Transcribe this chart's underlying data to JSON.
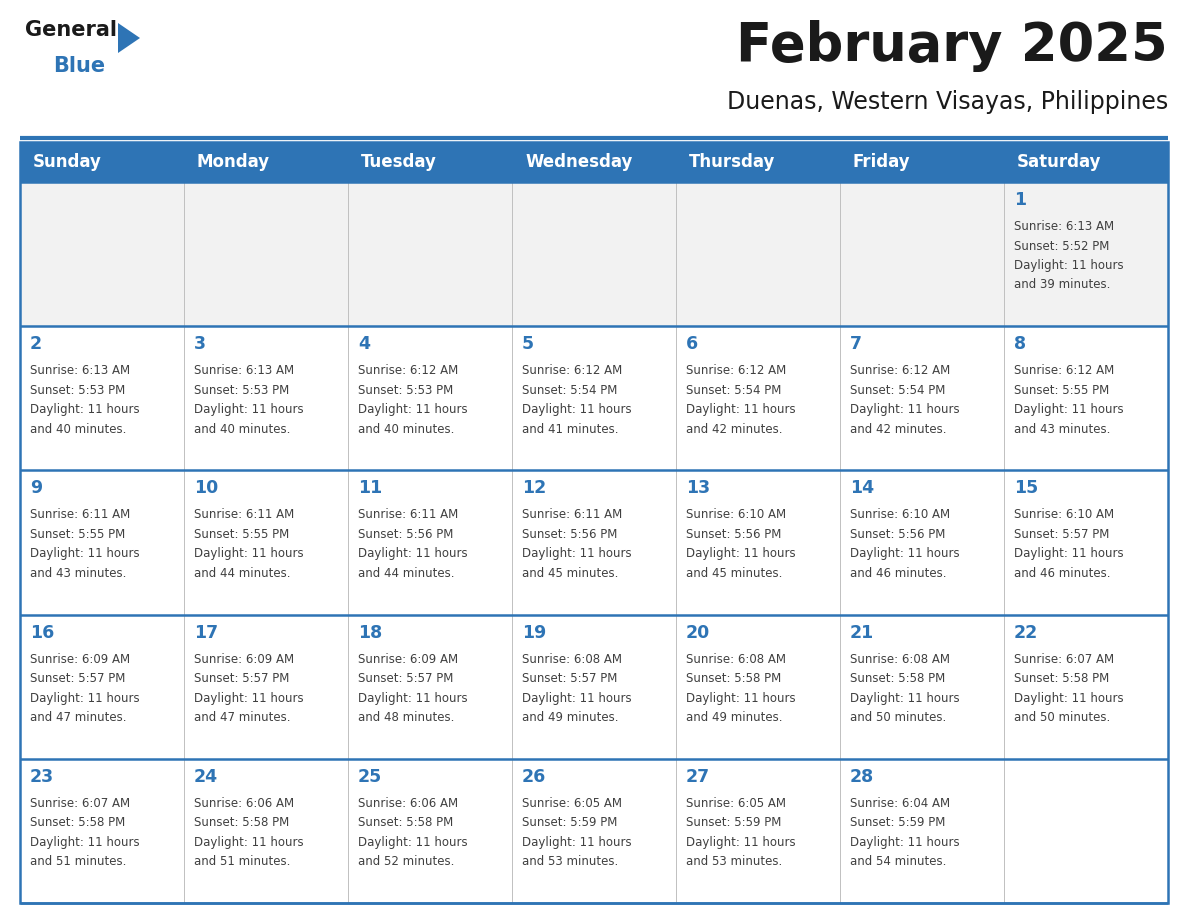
{
  "title": "February 2025",
  "subtitle": "Duenas, Western Visayas, Philippines",
  "days_of_week": [
    "Sunday",
    "Monday",
    "Tuesday",
    "Wednesday",
    "Thursday",
    "Friday",
    "Saturday"
  ],
  "header_bg": "#2E74B5",
  "header_text_color": "#FFFFFF",
  "cell_bg_white": "#FFFFFF",
  "cell_bg_gray": "#F2F2F2",
  "row_divider_color": "#2E74B5",
  "date_color": "#2E74B5",
  "info_color": "#404040",
  "title_color": "#1A1A1A",
  "subtitle_color": "#1A1A1A",
  "logo_general_color": "#1A1A1A",
  "logo_blue_color": "#2E74B5",
  "logo_triangle_color": "#2E74B5",
  "calendar_data": {
    "1": {
      "sunrise": "6:13 AM",
      "sunset": "5:52 PM",
      "daylight": "11 hours and 39 minutes."
    },
    "2": {
      "sunrise": "6:13 AM",
      "sunset": "5:53 PM",
      "daylight": "11 hours and 40 minutes."
    },
    "3": {
      "sunrise": "6:13 AM",
      "sunset": "5:53 PM",
      "daylight": "11 hours and 40 minutes."
    },
    "4": {
      "sunrise": "6:12 AM",
      "sunset": "5:53 PM",
      "daylight": "11 hours and 40 minutes."
    },
    "5": {
      "sunrise": "6:12 AM",
      "sunset": "5:54 PM",
      "daylight": "11 hours and 41 minutes."
    },
    "6": {
      "sunrise": "6:12 AM",
      "sunset": "5:54 PM",
      "daylight": "11 hours and 42 minutes."
    },
    "7": {
      "sunrise": "6:12 AM",
      "sunset": "5:54 PM",
      "daylight": "11 hours and 42 minutes."
    },
    "8": {
      "sunrise": "6:12 AM",
      "sunset": "5:55 PM",
      "daylight": "11 hours and 43 minutes."
    },
    "9": {
      "sunrise": "6:11 AM",
      "sunset": "5:55 PM",
      "daylight": "11 hours and 43 minutes."
    },
    "10": {
      "sunrise": "6:11 AM",
      "sunset": "5:55 PM",
      "daylight": "11 hours and 44 minutes."
    },
    "11": {
      "sunrise": "6:11 AM",
      "sunset": "5:56 PM",
      "daylight": "11 hours and 44 minutes."
    },
    "12": {
      "sunrise": "6:11 AM",
      "sunset": "5:56 PM",
      "daylight": "11 hours and 45 minutes."
    },
    "13": {
      "sunrise": "6:10 AM",
      "sunset": "5:56 PM",
      "daylight": "11 hours and 45 minutes."
    },
    "14": {
      "sunrise": "6:10 AM",
      "sunset": "5:56 PM",
      "daylight": "11 hours and 46 minutes."
    },
    "15": {
      "sunrise": "6:10 AM",
      "sunset": "5:57 PM",
      "daylight": "11 hours and 46 minutes."
    },
    "16": {
      "sunrise": "6:09 AM",
      "sunset": "5:57 PM",
      "daylight": "11 hours and 47 minutes."
    },
    "17": {
      "sunrise": "6:09 AM",
      "sunset": "5:57 PM",
      "daylight": "11 hours and 47 minutes."
    },
    "18": {
      "sunrise": "6:09 AM",
      "sunset": "5:57 PM",
      "daylight": "11 hours and 48 minutes."
    },
    "19": {
      "sunrise": "6:08 AM",
      "sunset": "5:57 PM",
      "daylight": "11 hours and 49 minutes."
    },
    "20": {
      "sunrise": "6:08 AM",
      "sunset": "5:58 PM",
      "daylight": "11 hours and 49 minutes."
    },
    "21": {
      "sunrise": "6:08 AM",
      "sunset": "5:58 PM",
      "daylight": "11 hours and 50 minutes."
    },
    "22": {
      "sunrise": "6:07 AM",
      "sunset": "5:58 PM",
      "daylight": "11 hours and 50 minutes."
    },
    "23": {
      "sunrise": "6:07 AM",
      "sunset": "5:58 PM",
      "daylight": "11 hours and 51 minutes."
    },
    "24": {
      "sunrise": "6:06 AM",
      "sunset": "5:58 PM",
      "daylight": "11 hours and 51 minutes."
    },
    "25": {
      "sunrise": "6:06 AM",
      "sunset": "5:58 PM",
      "daylight": "11 hours and 52 minutes."
    },
    "26": {
      "sunrise": "6:05 AM",
      "sunset": "5:59 PM",
      "daylight": "11 hours and 53 minutes."
    },
    "27": {
      "sunrise": "6:05 AM",
      "sunset": "5:59 PM",
      "daylight": "11 hours and 53 minutes."
    },
    "28": {
      "sunrise": "6:04 AM",
      "sunset": "5:59 PM",
      "daylight": "11 hours and 54 minutes."
    }
  },
  "weeks": [
    [
      null,
      null,
      null,
      null,
      null,
      null,
      1
    ],
    [
      2,
      3,
      4,
      5,
      6,
      7,
      8
    ],
    [
      9,
      10,
      11,
      12,
      13,
      14,
      15
    ],
    [
      16,
      17,
      18,
      19,
      20,
      21,
      22
    ],
    [
      23,
      24,
      25,
      26,
      27,
      28,
      null
    ]
  ]
}
